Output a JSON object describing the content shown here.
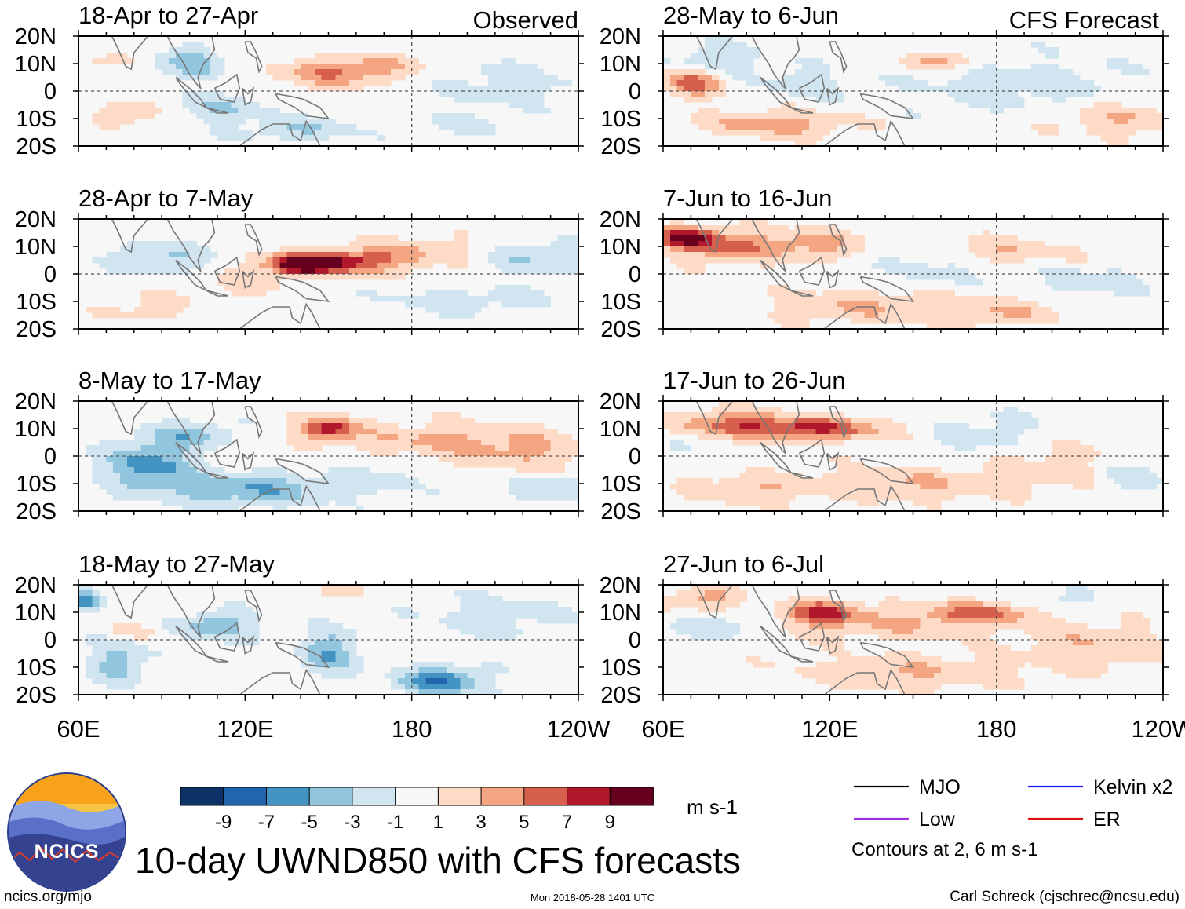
{
  "headers": {
    "observed": "Observed",
    "forecast": "CFS Forecast"
  },
  "chart_data": {
    "type": "heatmap",
    "title": "10-day UWND850 with CFS forecasts",
    "variable": "850 hPa zonal wind anomaly",
    "units": "m s-1",
    "lat_labels": [
      "20N",
      "10N",
      "0",
      "10S",
      "20S"
    ],
    "lon_labels": [
      "60E",
      "120E",
      "180",
      "120W"
    ],
    "lat_range": [
      -20,
      20
    ],
    "lon_range": [
      60,
      240
    ],
    "colorbar": {
      "ticks": [
        "-9",
        "-7",
        "-5",
        "-3",
        "-1",
        "1",
        "3",
        "5",
        "7",
        "9"
      ],
      "colors": [
        "#0d3366",
        "#2166ac",
        "#4393c3",
        "#92c5de",
        "#d1e5f0",
        "#f7f7f7",
        "#fddbc7",
        "#f4a582",
        "#d6604d",
        "#b2182b",
        "#67001f"
      ]
    },
    "legend": [
      {
        "label": "MJO",
        "color": "#000000"
      },
      {
        "label": "Kelvin x2",
        "color": "#1a1aff"
      },
      {
        "label": "Low",
        "color": "#a030e0"
      },
      {
        "label": "ER",
        "color": "#e01010"
      }
    ],
    "contour_note": "Contours at 2, 6 m s-1",
    "panels": [
      {
        "title": "18-Apr to 27-Apr",
        "source": "observed",
        "blobs": [
          [
            150,
            6,
            20,
            5,
            4
          ],
          [
            165,
            9,
            18,
            4,
            3
          ],
          [
            80,
            -8,
            12,
            4,
            3
          ],
          [
            75,
            12,
            8,
            3,
            2
          ],
          [
            100,
            10,
            12,
            6,
            -4
          ],
          [
            110,
            -6,
            18,
            5,
            -3
          ],
          [
            215,
            3,
            25,
            8,
            -2
          ],
          [
            200,
            -12,
            15,
            4,
            -2
          ],
          [
            140,
            -14,
            20,
            4,
            -3
          ]
        ]
      },
      {
        "title": "28-Apr to 7-May",
        "source": "observed",
        "blobs": [
          [
            150,
            4,
            22,
            4,
            9
          ],
          [
            140,
            3,
            10,
            3,
            7
          ],
          [
            180,
            8,
            25,
            5,
            3
          ],
          [
            120,
            -4,
            15,
            5,
            2
          ],
          [
            90,
            6,
            18,
            6,
            -3
          ],
          [
            225,
            6,
            20,
            6,
            -3
          ],
          [
            200,
            -10,
            30,
            5,
            -2
          ],
          [
            85,
            -12,
            15,
            5,
            2
          ]
        ]
      },
      {
        "title": "8-May to 17-May",
        "source": "observed",
        "blobs": [
          [
            150,
            10,
            10,
            4,
            8
          ],
          [
            185,
            6,
            30,
            6,
            3
          ],
          [
            220,
            2,
            25,
            8,
            3
          ],
          [
            85,
            -3,
            15,
            8,
            -6
          ],
          [
            120,
            -12,
            30,
            6,
            -5
          ],
          [
            100,
            8,
            15,
            5,
            -4
          ],
          [
            170,
            -8,
            15,
            5,
            -2
          ],
          [
            230,
            -12,
            15,
            5,
            -3
          ]
        ]
      },
      {
        "title": "18-May to 27-May",
        "source": "observed",
        "blobs": [
          [
            110,
            5,
            12,
            5,
            -5
          ],
          [
            150,
            -5,
            10,
            8,
            -5
          ],
          [
            190,
            -15,
            15,
            5,
            -7
          ],
          [
            75,
            -8,
            10,
            8,
            -4
          ],
          [
            62,
            15,
            6,
            4,
            -6
          ],
          [
            152,
            18,
            8,
            3,
            3
          ],
          [
            80,
            3,
            8,
            3,
            2
          ],
          [
            210,
            8,
            25,
            8,
            -2
          ]
        ]
      },
      {
        "title": "28-May to 6-Jun",
        "source": "forecast",
        "blobs": [
          [
            70,
            3,
            10,
            5,
            6
          ],
          [
            100,
            -12,
            25,
            5,
            4
          ],
          [
            160,
            11,
            14,
            3,
            4
          ],
          [
            225,
            -10,
            25,
            6,
            3
          ],
          [
            80,
            12,
            15,
            5,
            -3
          ],
          [
            190,
            2,
            40,
            10,
            -2
          ],
          [
            110,
            3,
            15,
            6,
            -2
          ]
        ]
      },
      {
        "title": "7-Jun to 16-Jun",
        "source": "forecast",
        "blobs": [
          [
            68,
            13,
            10,
            4,
            9
          ],
          [
            85,
            10,
            18,
            6,
            5
          ],
          [
            115,
            11,
            15,
            5,
            4
          ],
          [
            130,
            -12,
            30,
            6,
            3
          ],
          [
            180,
            -14,
            25,
            5,
            3
          ],
          [
            180,
            8,
            25,
            5,
            3
          ],
          [
            160,
            3,
            20,
            6,
            -2
          ],
          [
            215,
            -3,
            20,
            6,
            -2
          ]
        ]
      },
      {
        "title": "17-Jun to 26-Jun",
        "source": "forecast",
        "blobs": [
          [
            115,
            10,
            25,
            4,
            7
          ],
          [
            85,
            12,
            20,
            5,
            5
          ],
          [
            90,
            -12,
            20,
            5,
            3
          ],
          [
            150,
            -10,
            40,
            6,
            3
          ],
          [
            200,
            -3,
            20,
            8,
            2
          ],
          [
            230,
            -8,
            12,
            6,
            -2
          ],
          [
            175,
            8,
            20,
            8,
            -2
          ],
          [
            65,
            3,
            6,
            4,
            -2
          ]
        ]
      },
      {
        "title": "27-Jun to 6-Jul",
        "source": "forecast",
        "blobs": [
          [
            117,
            10,
            12,
            4,
            7
          ],
          [
            175,
            10,
            20,
            4,
            5
          ],
          [
            140,
            6,
            40,
            6,
            3
          ],
          [
            75,
            15,
            12,
            4,
            4
          ],
          [
            80,
            5,
            15,
            4,
            -3
          ],
          [
            150,
            -12,
            40,
            6,
            3
          ],
          [
            215,
            -2,
            25,
            8,
            3
          ],
          [
            200,
            14,
            15,
            4,
            -2
          ]
        ]
      }
    ]
  },
  "footer": {
    "logo_text": "NCICS",
    "url": "ncics.org/mjo",
    "timestamp": "Mon 2018-05-28 1401 UTC",
    "author": "Carl Schreck (cjschrec@ncsu.edu)"
  }
}
